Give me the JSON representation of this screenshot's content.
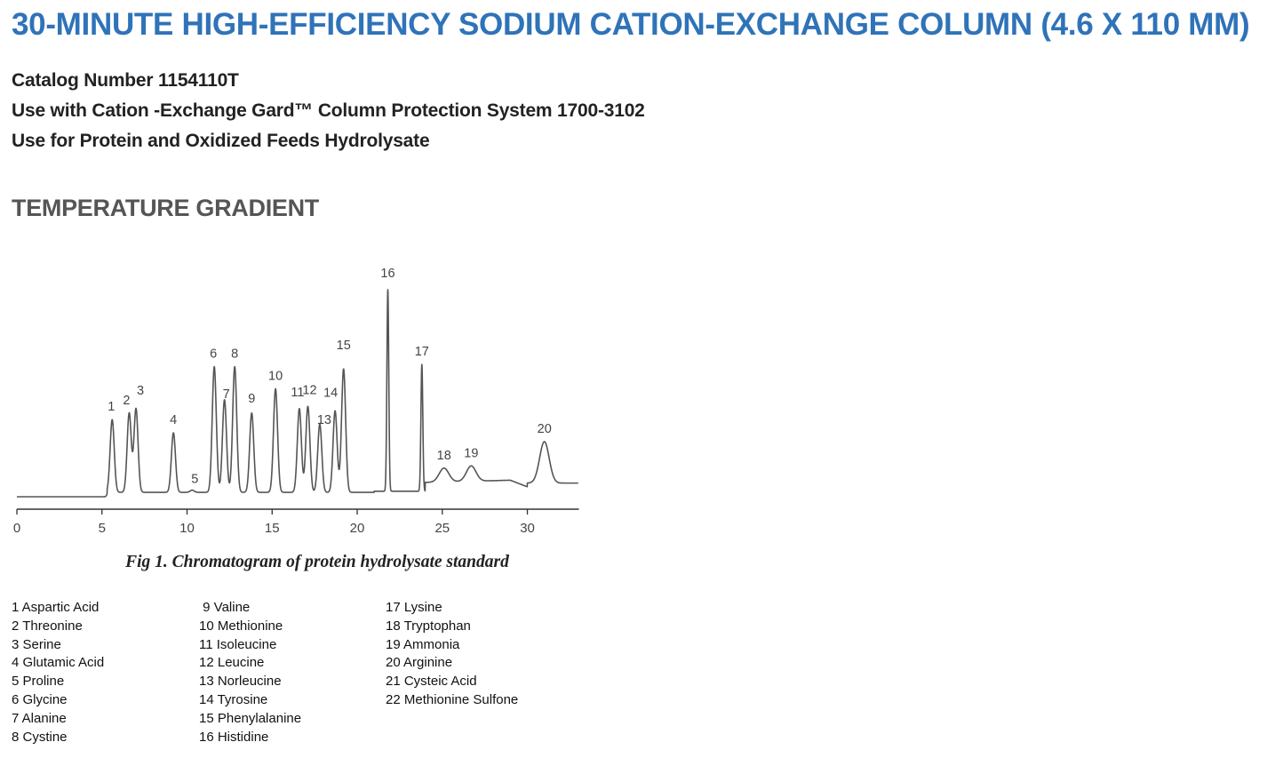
{
  "title": "30-MINUTE HIGH-EFFICIENCY SODIUM CATION-EXCHANGE COLUMN (4.6 X 110 MM)",
  "info_lines": [
    "Catalog Number 1154110T",
    "Use with Cation -Exchange Gard™ Column Protection System 1700-3102",
    "Use for Protein and Oxidized Feeds Hydrolysate"
  ],
  "section_title": "TEMPERATURE GRADIENT",
  "colors": {
    "title": "#2f73b8",
    "section": "#555555",
    "trace": "#555555"
  },
  "chart_data": {
    "type": "line",
    "caption": "Fig 1. Chromatogram of protein hydrolysate standard",
    "xlim": [
      0,
      33
    ],
    "xticks": [
      0,
      5,
      10,
      15,
      20,
      25,
      30
    ],
    "ylim": [
      0,
      100
    ],
    "grid": false,
    "legend_placement": "below",
    "peaks": [
      {
        "label": "1",
        "x": 5.6,
        "y": 35
      },
      {
        "label": "2",
        "x": 6.6,
        "y": 38
      },
      {
        "label": "3",
        "x": 7.0,
        "y": 40
      },
      {
        "label": "4",
        "x": 9.2,
        "y": 29
      },
      {
        "label": "5",
        "x": 10.3,
        "y": 3
      },
      {
        "label": "6",
        "x": 11.6,
        "y": 59
      },
      {
        "label": "7",
        "x": 12.2,
        "y": 44
      },
      {
        "label": "8",
        "x": 12.8,
        "y": 59
      },
      {
        "label": "9",
        "x": 13.8,
        "y": 38
      },
      {
        "label": "10",
        "x": 15.2,
        "y": 49
      },
      {
        "label": "11",
        "x": 16.6,
        "y": 40
      },
      {
        "label": "12",
        "x": 17.1,
        "y": 41
      },
      {
        "label": "13",
        "x": 17.8,
        "y": 33
      },
      {
        "label": "14",
        "x": 18.7,
        "y": 39
      },
      {
        "label": "15",
        "x": 19.2,
        "y": 58
      },
      {
        "label": "16",
        "x": 21.8,
        "y": 94
      },
      {
        "label": "17",
        "x": 23.8,
        "y": 60
      },
      {
        "label": "18",
        "x": 25.1,
        "y": 13
      },
      {
        "label": "19",
        "x": 26.7,
        "y": 14
      },
      {
        "label": "20",
        "x": 31.0,
        "y": 25
      }
    ],
    "legend": [
      [
        "1 Aspartic Acid",
        "2 Threonine",
        "3 Serine",
        "4 Glutamic Acid",
        "5 Proline",
        "6 Glycine",
        "7 Alanine",
        "8 Cystine"
      ],
      [
        " 9 Valine",
        "10 Methionine",
        "11 Isoleucine",
        "12 Leucine",
        "13 Norleucine",
        "14 Tyrosine",
        "15 Phenylalanine",
        "16 Histidine"
      ],
      [
        "17 Lysine",
        "18 Tryptophan",
        "19 Ammonia",
        "20 Arginine",
        "21 Cysteic Acid",
        "22 Methionine Sulfone"
      ]
    ]
  }
}
